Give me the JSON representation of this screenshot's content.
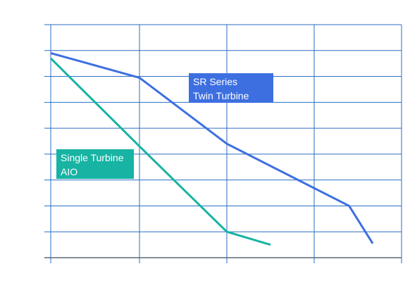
{
  "chart_data": {
    "type": "line",
    "grid": true,
    "xlim": [
      0,
      4
    ],
    "ylim": [
      0,
      9
    ],
    "x_gridlines": [
      0,
      1,
      2,
      3,
      4
    ],
    "y_gridlines": [
      0,
      1,
      2,
      3,
      4,
      5,
      6,
      7,
      8,
      9
    ],
    "series": [
      {
        "name": "SR Series\nTwin Turbine",
        "color": "#3d6fe0",
        "points": [
          [
            0,
            7.9
          ],
          [
            1,
            6.95
          ],
          [
            2,
            4.4
          ],
          [
            3.4,
            2.0
          ],
          [
            3.67,
            0.55
          ]
        ]
      },
      {
        "name": "Single Turbine\nAIO",
        "color": "#17b3a3",
        "points": [
          [
            0,
            7.7
          ],
          [
            1,
            4.3
          ],
          [
            2,
            1.0
          ],
          [
            2.5,
            0.5
          ]
        ]
      }
    ]
  }
}
